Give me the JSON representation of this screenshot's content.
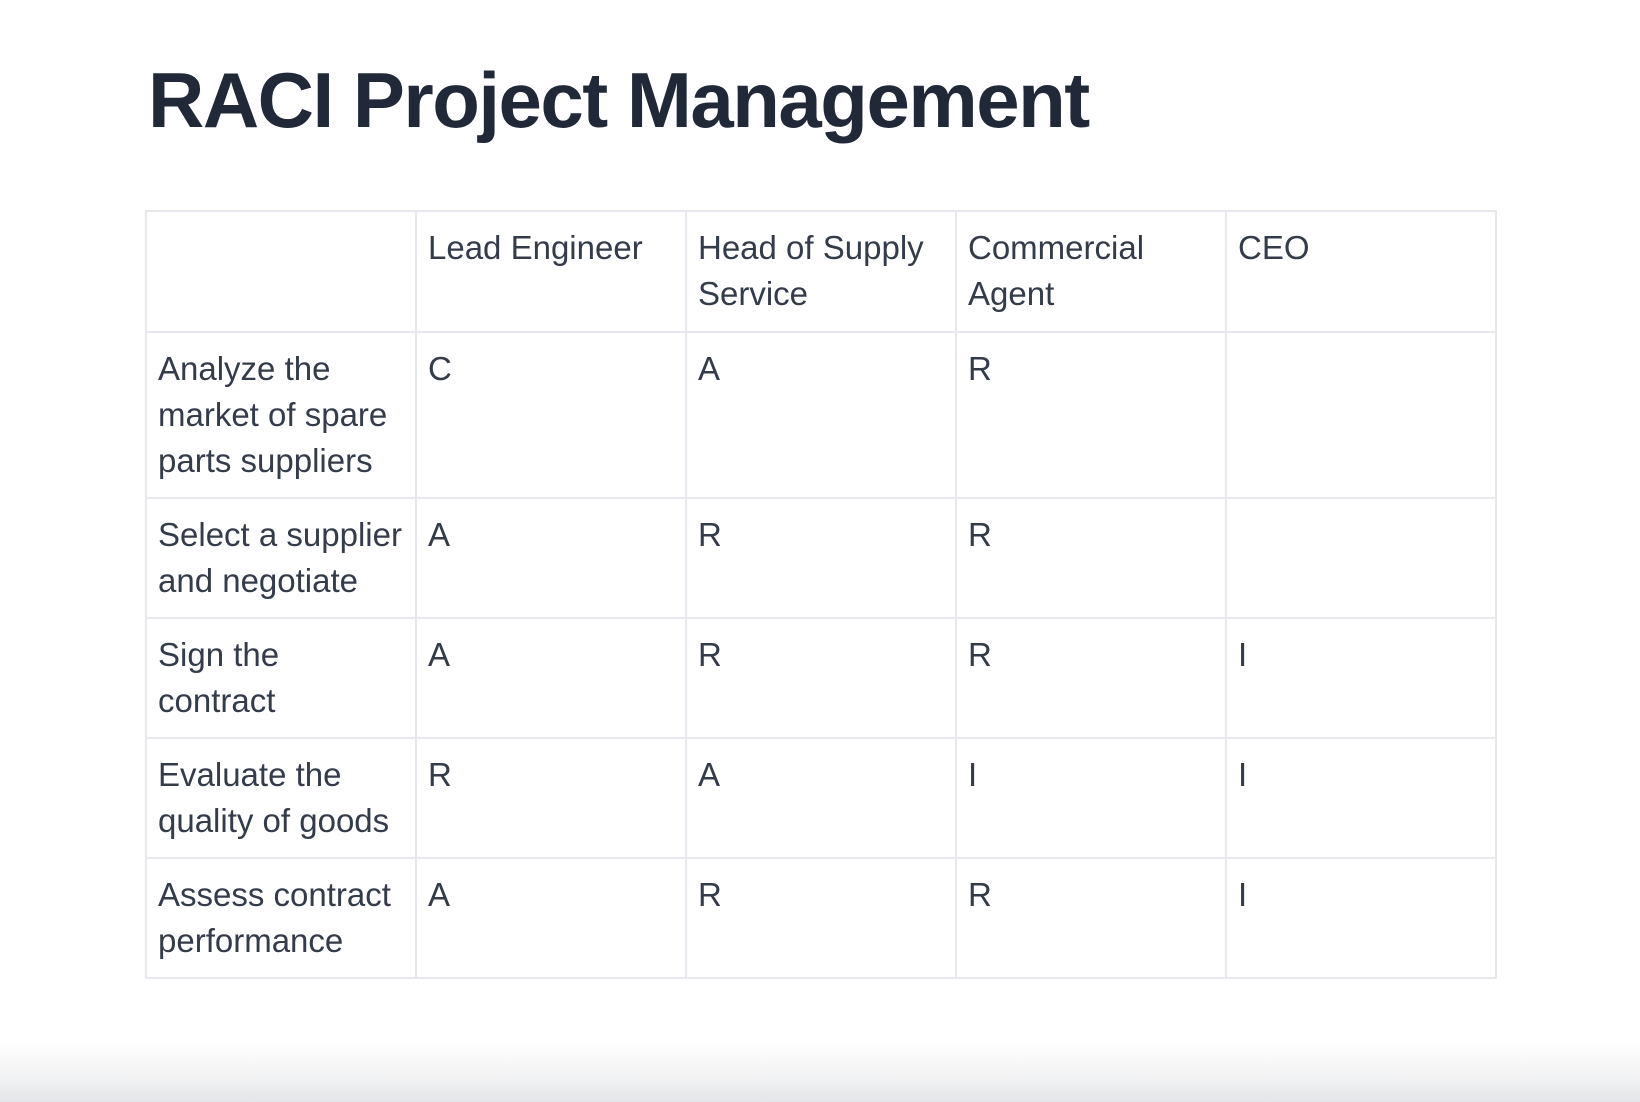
{
  "page": {
    "title": "RACI Project Management"
  },
  "table": {
    "columns": [
      "",
      "Lead Engineer",
      "Head of Supply Service",
      "Commercial Agent",
      "CEO"
    ],
    "rows": [
      {
        "task": "Analyze the market of spare parts suppliers",
        "cells": [
          "C",
          "A",
          "R",
          ""
        ]
      },
      {
        "task": "Select a supplier and negotiate",
        "cells": [
          "A",
          "R",
          "R",
          ""
        ]
      },
      {
        "task": "Sign the contract",
        "cells": [
          "A",
          "R",
          "R",
          "I"
        ]
      },
      {
        "task": "Evaluate the quality of goods",
        "cells": [
          "R",
          "A",
          "I",
          "I"
        ]
      },
      {
        "task": "Assess contract performance",
        "cells": [
          "A",
          "R",
          "R",
          "I"
        ]
      }
    ]
  },
  "colors": {
    "title_text": "#212838",
    "body_text": "#343b49",
    "table_border": "#e7e9ee",
    "page_background": "#ffffff"
  }
}
